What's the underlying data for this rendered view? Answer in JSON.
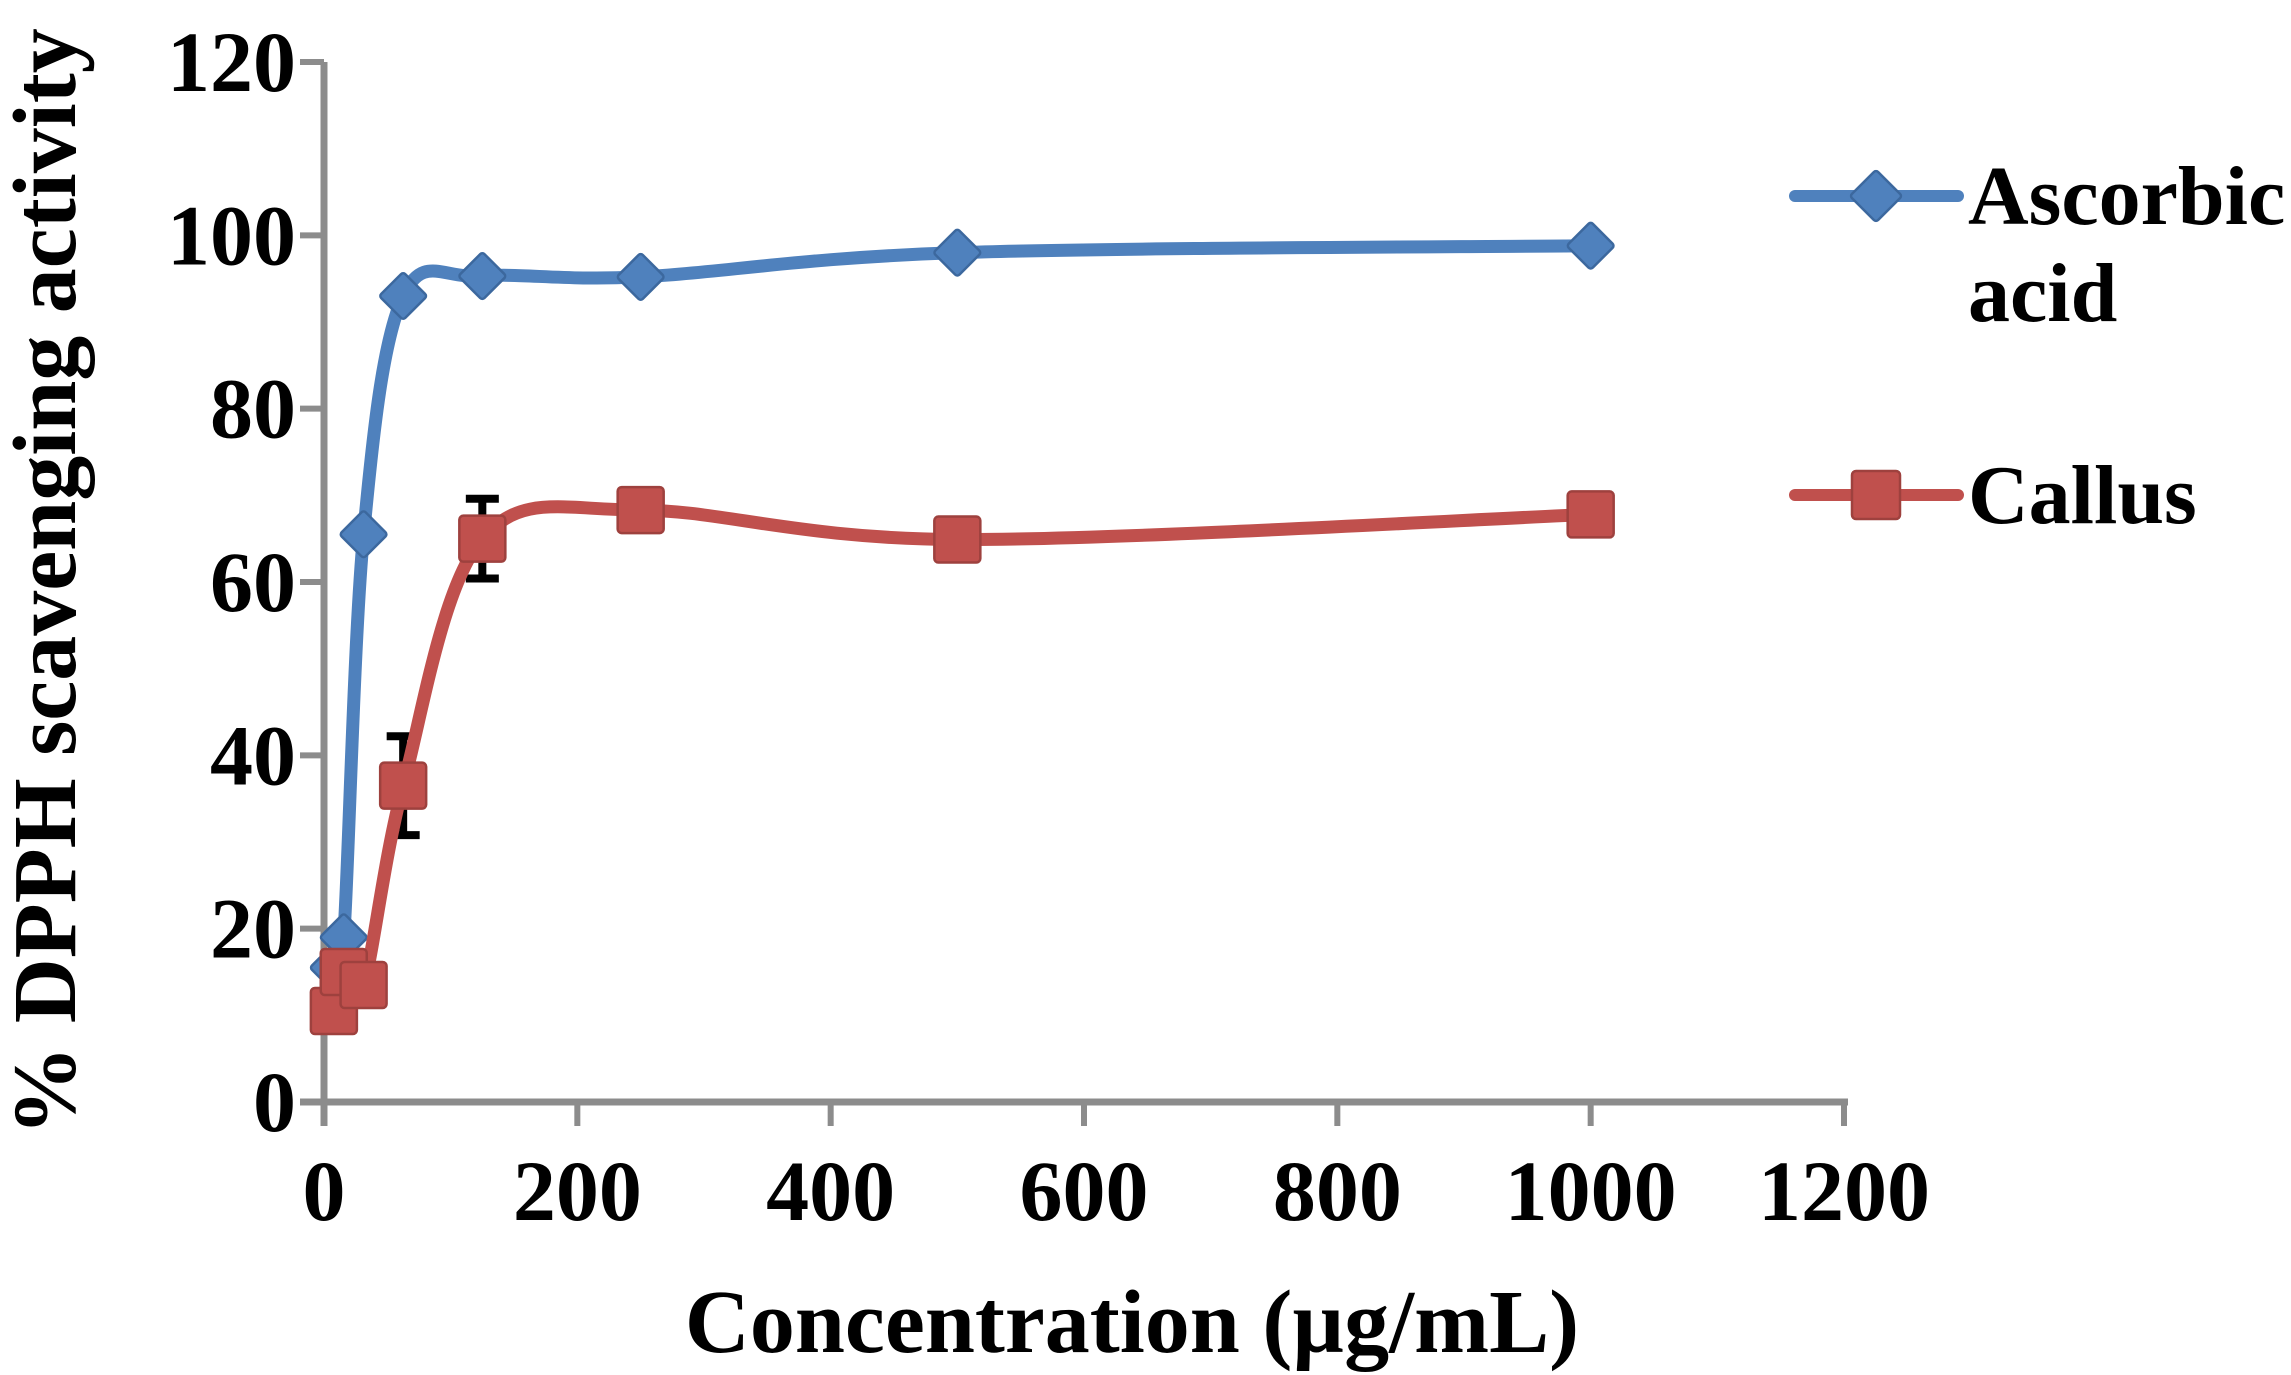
{
  "chart_data": {
    "type": "line",
    "title": "",
    "xlabel": "Concentration (µg/mL)",
    "ylabel": "% DPPH scavenging activity",
    "xlim": [
      0,
      1200
    ],
    "ylim": [
      0,
      120
    ],
    "xticks": [
      0,
      200,
      400,
      600,
      800,
      1000,
      1200
    ],
    "yticks": [
      0,
      20,
      40,
      60,
      80,
      100,
      120
    ],
    "grid": false,
    "legend_position": "right",
    "line_style": "smooth",
    "x": [
      7.8,
      15.6,
      31.25,
      62.5,
      125,
      250,
      500,
      1000
    ],
    "series": [
      {
        "name": "Ascorbic acid",
        "legend_lines": [
          "Ascorbic",
          "acid"
        ],
        "marker": "diamond",
        "color": "#4F81BD",
        "edge_color": "#3C689E",
        "values": [
          15.5,
          19.0,
          65.5,
          93.0,
          95.3,
          95.2,
          98.0,
          98.8
        ]
      },
      {
        "name": "Callus",
        "legend_lines": [
          "Callus"
        ],
        "marker": "square",
        "color": "#C0504D",
        "edge_color": "#9E413E",
        "values": [
          10.5,
          15.0,
          13.5,
          36.5,
          65.0,
          68.3,
          64.9,
          67.8
        ]
      }
    ],
    "error_bars": {
      "series": "Callus",
      "color": "#000000",
      "points": [
        {
          "x": 62.5,
          "y": 36.5,
          "plus": 5.7,
          "minus": 5.7
        },
        {
          "x": 125,
          "y": 65.0,
          "plus": 4.6,
          "minus": 4.6
        }
      ]
    }
  },
  "colors": {
    "axis": "#8C8C8C",
    "text": "#000000",
    "background": "#FFFFFF"
  }
}
